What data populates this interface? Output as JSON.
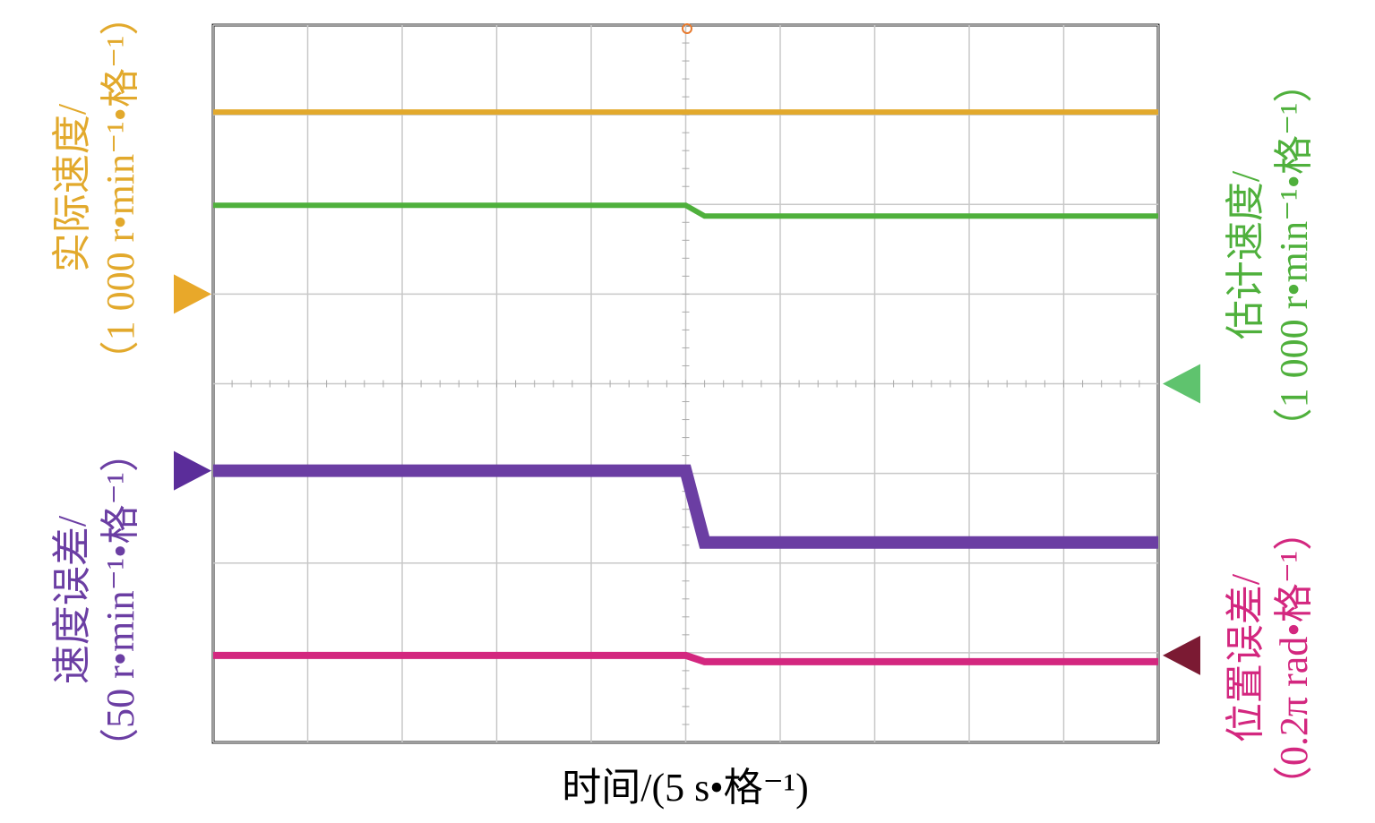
{
  "chart_data": {
    "type": "line",
    "x_label": "时间/(5 s•格⁻¹)",
    "x": [
      0,
      25,
      26,
      50
    ],
    "xlim": [
      0,
      50
    ],
    "xticks": [
      0,
      5,
      10,
      15,
      20,
      25,
      30,
      35,
      40,
      45,
      50
    ],
    "ylim": [
      -4,
      4
    ],
    "yticks": [
      -4,
      -3,
      -2,
      -1,
      0,
      1,
      2,
      3,
      4
    ],
    "grid": true,
    "series": [
      {
        "name": "实际速度/",
        "unit": "（1 000 r•min⁻¹•格⁻¹）",
        "color": "#e2a92c",
        "marker_color": "#e8a82a",
        "marker_side": "left",
        "marker_level": 1,
        "values": [
          3.03,
          3.03,
          3.03,
          3.03
        ]
      },
      {
        "name": "估计速度/",
        "unit": "（1 000 r•min⁻¹•格⁻¹）",
        "color": "#4fb03c",
        "marker_color": "#5fc36e",
        "marker_side": "right",
        "marker_level": 0,
        "values": [
          1.99,
          1.99,
          1.87,
          1.87
        ]
      },
      {
        "name": "速度误差/",
        "unit": "（50 r•min⁻¹•格⁻¹）",
        "color": "#6b3ea3",
        "marker_color": "#5b2d9a",
        "marker_side": "left",
        "marker_level": -0.97,
        "values": [
          -0.97,
          -0.97,
          -1.77,
          -1.77
        ]
      },
      {
        "name": "位置误差/",
        "unit": "（0.2π rad•格⁻¹）",
        "color": "#d3277f",
        "marker_color": "#7b1a33",
        "marker_side": "right",
        "marker_level": -3.03,
        "values": [
          -3.03,
          -3.03,
          -3.1,
          -3.1
        ]
      }
    ]
  }
}
